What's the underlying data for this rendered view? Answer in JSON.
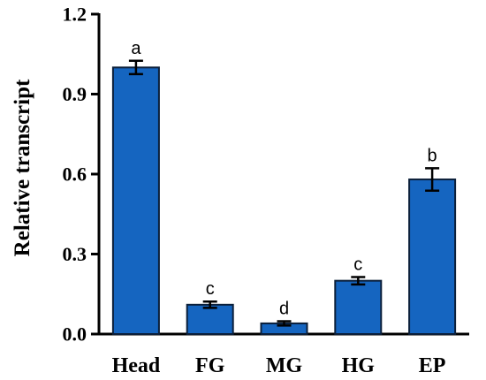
{
  "chart_data": {
    "type": "bar",
    "categories": [
      "Head",
      "FG",
      "MG",
      "HG",
      "EP"
    ],
    "values": [
      1.0,
      0.11,
      0.04,
      0.2,
      0.58
    ],
    "errors": [
      0.025,
      0.012,
      0.008,
      0.014,
      0.042
    ],
    "significance": [
      "a",
      "c",
      "d",
      "c",
      "b"
    ],
    "ylabel": "Relative transcript",
    "xlabel": "",
    "ylim": [
      0,
      1.2
    ],
    "yticks": [
      0.0,
      0.3,
      0.6,
      0.9,
      1.2
    ],
    "ytick_labels": [
      "0.0",
      "0.3",
      "0.6",
      "0.9",
      "1.2"
    ],
    "bar_color": "#1565C0",
    "bar_edge_color": "#0B1F3A",
    "grid": false
  }
}
